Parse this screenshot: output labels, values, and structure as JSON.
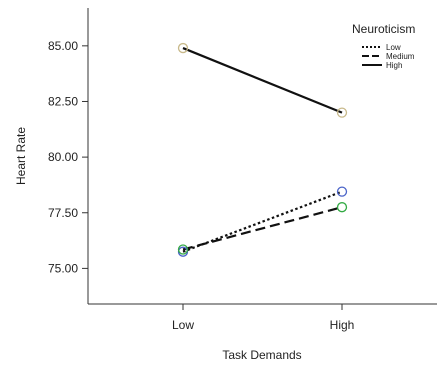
{
  "chart_data": {
    "type": "line",
    "title": "",
    "xlabel": "Task Demands",
    "ylabel": "Heart Rate",
    "categories": [
      "Low",
      "High"
    ],
    "ylim": [
      73.4,
      86.7
    ],
    "yticks": [
      "75.00",
      "77.50",
      "80.00",
      "82.50",
      "85.00"
    ],
    "grid": false,
    "legend": {
      "title": "Neuroticism",
      "placement": "top-right"
    },
    "series": [
      {
        "name": "Low",
        "values": [
          75.75,
          78.45
        ],
        "line_style": "dotted",
        "marker_color": "#4a63c8"
      },
      {
        "name": "Medium",
        "values": [
          75.85,
          77.75
        ],
        "line_style": "dashed",
        "marker_color": "#33aa44"
      },
      {
        "name": "High",
        "values": [
          84.9,
          82.0
        ],
        "line_style": "solid",
        "marker_color": "#c8b98a"
      }
    ]
  }
}
